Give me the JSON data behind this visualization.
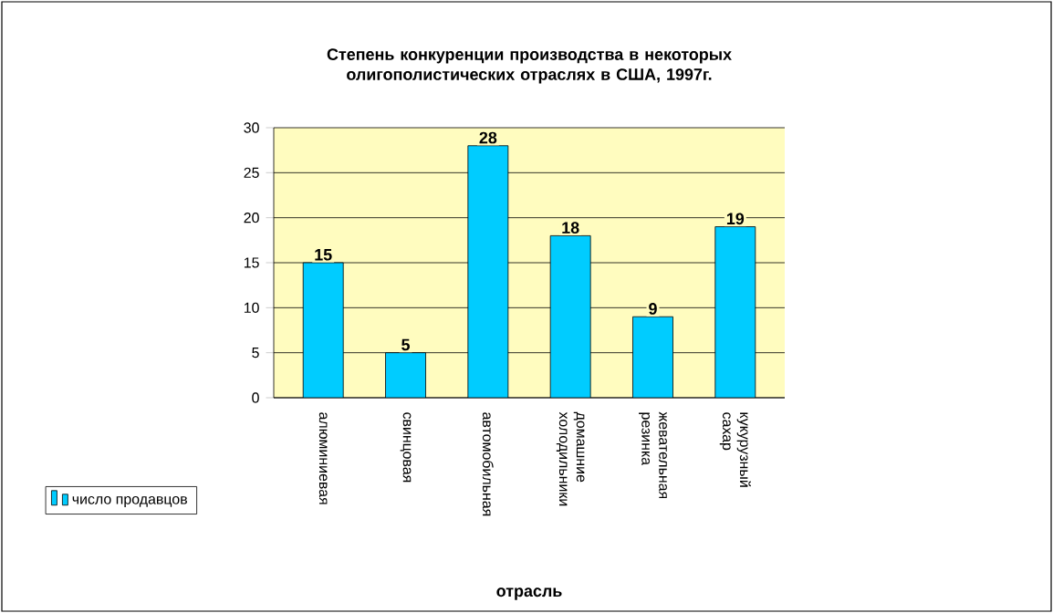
{
  "chart_data": {
    "type": "bar",
    "title": "Степень конкуренции производства в некоторых олигополистических отраслях в США, 1997г.",
    "categories": [
      "алюминиевая",
      "свинцовая",
      "автомобильная",
      "домашние холодильники",
      "жевательная резинка",
      "кукурузный сахар"
    ],
    "series": [
      {
        "name": "число продавцов",
        "color": "#00ccff",
        "values": [
          15,
          5,
          28,
          18,
          9,
          19
        ]
      }
    ],
    "xlabel": "отрасль",
    "ylim": [
      0,
      30
    ],
    "yticks": [
      0,
      5,
      10,
      15,
      20,
      25,
      30
    ],
    "grid": "y",
    "legend": "left",
    "data_labels": true
  }
}
